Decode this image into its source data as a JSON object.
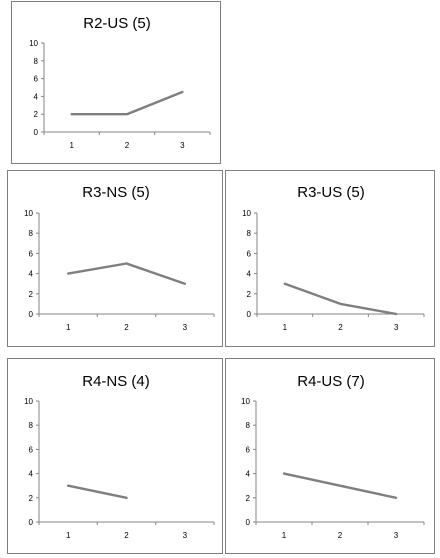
{
  "chart_data": [
    {
      "id": "p1",
      "type": "line",
      "title": "R2-US (5)",
      "x": [
        1,
        2,
        3
      ],
      "values": [
        2,
        2,
        4.5
      ],
      "ylim": [
        0,
        10
      ],
      "yticks": [
        0,
        2,
        4,
        6,
        8,
        10
      ],
      "grid": false,
      "line_color": "#7f7f7f"
    },
    {
      "id": "p2",
      "type": "line",
      "title": "R3-NS (5)",
      "x": [
        1,
        2,
        3
      ],
      "values": [
        4,
        5,
        3
      ],
      "ylim": [
        0,
        10
      ],
      "yticks": [
        0,
        2,
        4,
        6,
        8,
        10
      ],
      "grid": false,
      "line_color": "#7f7f7f"
    },
    {
      "id": "p3",
      "type": "line",
      "title": "R3-US (5)",
      "x": [
        1,
        2,
        3
      ],
      "values": [
        3,
        1,
        0
      ],
      "ylim": [
        0,
        10
      ],
      "yticks": [
        0,
        2,
        4,
        6,
        8,
        10
      ],
      "grid": false,
      "line_color": "#7f7f7f"
    },
    {
      "id": "p4",
      "type": "line",
      "title": "R4-NS (4)",
      "x": [
        1,
        2,
        3
      ],
      "values": [
        3,
        2,
        null
      ],
      "ylim": [
        0,
        10
      ],
      "yticks": [
        0,
        2,
        4,
        6,
        8,
        10
      ],
      "grid": false,
      "line_color": "#7f7f7f"
    },
    {
      "id": "p5",
      "type": "line",
      "title": "R4-US (7)",
      "x": [
        1,
        2,
        3
      ],
      "values": [
        4,
        3,
        2
      ],
      "ylim": [
        0,
        10
      ],
      "yticks": [
        0,
        2,
        4,
        6,
        8,
        10
      ],
      "grid": false,
      "line_color": "#7f7f7f"
    }
  ]
}
